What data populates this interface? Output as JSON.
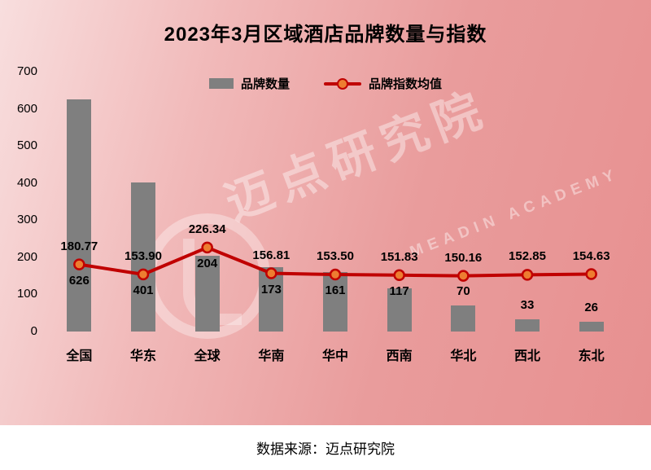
{
  "chart_data": {
    "type": "combo",
    "title": "2023年3月区域酒店品牌数量与指数",
    "categories": [
      "全国",
      "华东",
      "全球",
      "华南",
      "华中",
      "西南",
      "华北",
      "西北",
      "东北"
    ],
    "series": [
      {
        "name": "品牌数量",
        "type": "bar",
        "color": "#7F7F7F",
        "values": [
          626,
          401,
          204,
          173,
          161,
          117,
          70,
          33,
          26
        ],
        "labels": [
          "626",
          "401",
          "204",
          "173",
          "161",
          "117",
          "70",
          "33",
          "26"
        ]
      },
      {
        "name": "品牌指数均值",
        "type": "line",
        "color": "#C00000",
        "marker_fill": "#ED7D31",
        "values": [
          180.77,
          153.9,
          226.34,
          156.81,
          153.5,
          151.83,
          150.16,
          152.85,
          154.63
        ],
        "labels": [
          "180.77",
          "153.90",
          "226.34",
          "156.81",
          "153.50",
          "151.83",
          "150.16",
          "152.85",
          "154.63"
        ]
      }
    ],
    "y_axis": {
      "min": 0,
      "max": 700,
      "step": 100,
      "ticks": [
        "0",
        "100",
        "200",
        "300",
        "400",
        "500",
        "600",
        "700"
      ]
    },
    "legend_position": "top",
    "grid": false
  },
  "watermark": {
    "text": "迈点研究院",
    "subtext": "MEADIN ACADEMY"
  },
  "footer": {
    "source_text": "数据来源：迈点研究院"
  }
}
